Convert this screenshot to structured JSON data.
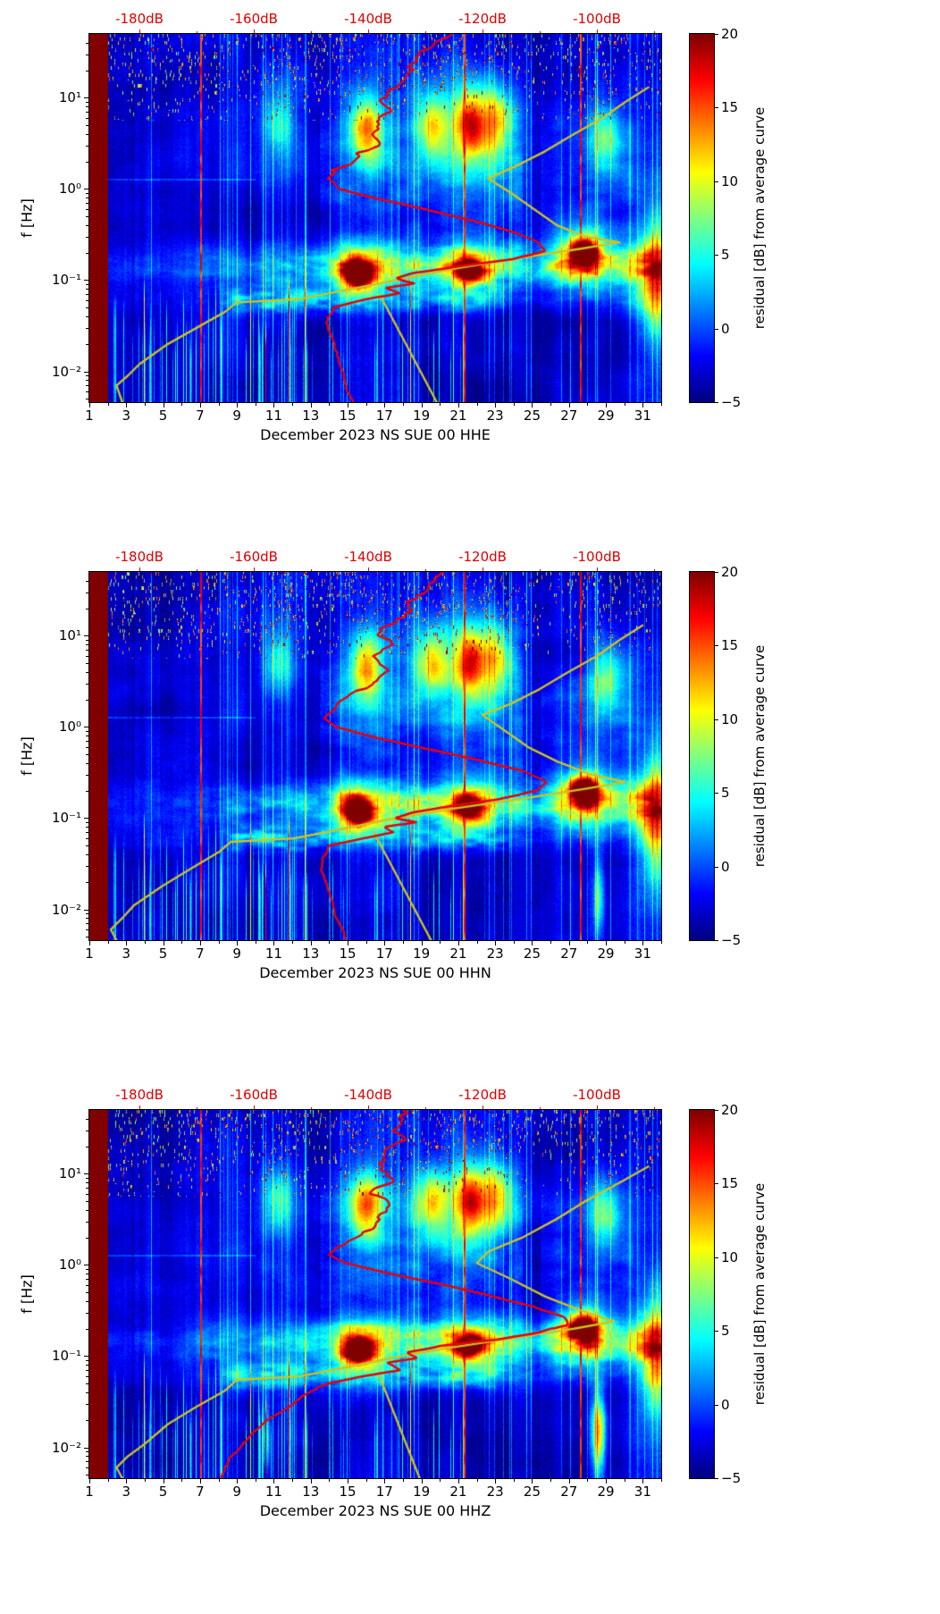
{
  "figure": {
    "background": "#ffffff",
    "colors": {
      "top_axis_text": "#dd0000",
      "red_curve": "#e8000b",
      "yellow_curve": "#cfc320",
      "axis_text": "#000000",
      "colormap_low": "#00007f",
      "colormap_high": "#800000"
    },
    "colorbar": {
      "label": "residual [dB] from average curve",
      "tick_labels": [
        "20",
        "15",
        "10",
        "5",
        "0",
        "−5"
      ],
      "tick_values": [
        20,
        15,
        10,
        5,
        0,
        -5
      ],
      "vmin": -5,
      "vmax": 20
    },
    "axes": {
      "ylabel": "f [Hz]",
      "f_range_hz": [
        0.0046,
        50
      ],
      "day_range": [
        1,
        32
      ],
      "db_range": [
        -188.75,
        -88.75
      ],
      "x_tick_labels": [
        "1",
        "3",
        "5",
        "7",
        "9",
        "11",
        "13",
        "15",
        "17",
        "19",
        "21",
        "23",
        "25",
        "27",
        "29",
        "31"
      ],
      "x_tick_values": [
        1,
        3,
        5,
        7,
        9,
        11,
        13,
        15,
        17,
        19,
        21,
        23,
        25,
        27,
        29,
        31
      ],
      "y_ticks": [
        {
          "f": 10,
          "label": "10¹"
        },
        {
          "f": 1,
          "label": "10⁰"
        },
        {
          "f": 0.1,
          "label": "10⁻¹"
        },
        {
          "f": 0.01,
          "label": "10⁻²"
        }
      ],
      "top_ticks": [
        {
          "db": -180,
          "label": "-180dB"
        },
        {
          "db": -160,
          "label": "-160dB"
        },
        {
          "db": -140,
          "label": "-140dB"
        },
        {
          "db": -120,
          "label": "-120dB"
        },
        {
          "db": -100,
          "label": "-100dB"
        }
      ]
    }
  },
  "chart_data": {
    "type": "heatmap",
    "panels": [
      {
        "xlabel": "December 2023 NS SUE 00 HHE",
        "red_curve": [
          [
            50,
            -127
          ],
          [
            35,
            -129
          ],
          [
            25,
            -131
          ],
          [
            18,
            -133
          ],
          [
            12,
            -136
          ],
          [
            9,
            -138
          ],
          [
            7,
            -137
          ],
          [
            5.5,
            -140
          ],
          [
            4.2,
            -138
          ],
          [
            3,
            -138
          ],
          [
            2.4,
            -141
          ],
          [
            1.8,
            -144
          ],
          [
            1.3,
            -147
          ],
          [
            1.0,
            -145
          ],
          [
            0.8,
            -139
          ],
          [
            0.6,
            -130
          ],
          [
            0.45,
            -122
          ],
          [
            0.33,
            -114
          ],
          [
            0.26,
            -110
          ],
          [
            0.21,
            -109
          ],
          [
            0.17,
            -114
          ],
          [
            0.14,
            -124
          ],
          [
            0.12,
            -132
          ],
          [
            0.105,
            -135
          ],
          [
            0.092,
            -132
          ],
          [
            0.082,
            -137
          ],
          [
            0.072,
            -134
          ],
          [
            0.062,
            -140
          ],
          [
            0.05,
            -146
          ],
          [
            0.038,
            -147
          ],
          [
            0.028,
            -147
          ],
          [
            0.02,
            -146
          ],
          [
            0.013,
            -145
          ],
          [
            0.008,
            -144
          ],
          [
            0.0046,
            -143
          ]
        ],
        "yellow_curve": [
          [
            13,
            -91
          ],
          [
            9,
            -95
          ],
          [
            6,
            -99
          ],
          [
            4,
            -104
          ],
          [
            2.6,
            -109
          ],
          [
            1.8,
            -114
          ],
          [
            1.3,
            -119
          ],
          [
            0.9,
            -115
          ],
          [
            0.6,
            -111
          ],
          [
            0.4,
            -107
          ],
          [
            0.3,
            -102
          ],
          [
            0.26,
            -96
          ],
          [
            0.22,
            -103
          ],
          [
            0.17,
            -115
          ],
          [
            0.13,
            -126
          ],
          [
            0.1,
            -135
          ],
          [
            0.08,
            -143
          ],
          [
            0.062,
            -152
          ],
          [
            0.057,
            -163
          ],
          [
            0.045,
            -165
          ],
          [
            0.03,
            -170
          ],
          [
            0.02,
            -175
          ],
          [
            0.012,
            -180
          ],
          [
            0.009,
            -182
          ],
          [
            0.007,
            -184
          ],
          [
            0.0046,
            -183
          ]
        ],
        "yellow_branch": [
          [
            0.07,
            -138
          ],
          [
            0.0046,
            -128
          ]
        ]
      },
      {
        "xlabel": "December 2023 NS SUE 00 HHN",
        "red_curve": [
          [
            50,
            -128
          ],
          [
            33,
            -130
          ],
          [
            22,
            -132
          ],
          [
            15,
            -135
          ],
          [
            10,
            -138
          ],
          [
            8,
            -136
          ],
          [
            6,
            -140
          ],
          [
            4.5,
            -138
          ],
          [
            3.2,
            -138
          ],
          [
            2.3,
            -142
          ],
          [
            1.7,
            -145
          ],
          [
            1.25,
            -148
          ],
          [
            1.0,
            -146
          ],
          [
            0.8,
            -140
          ],
          [
            0.6,
            -131
          ],
          [
            0.45,
            -122
          ],
          [
            0.33,
            -113
          ],
          [
            0.25,
            -109
          ],
          [
            0.2,
            -110
          ],
          [
            0.16,
            -117
          ],
          [
            0.135,
            -126
          ],
          [
            0.115,
            -133
          ],
          [
            0.1,
            -136
          ],
          [
            0.09,
            -132
          ],
          [
            0.08,
            -137
          ],
          [
            0.07,
            -135
          ],
          [
            0.06,
            -141
          ],
          [
            0.05,
            -147
          ],
          [
            0.037,
            -148
          ],
          [
            0.027,
            -148
          ],
          [
            0.018,
            -147
          ],
          [
            0.011,
            -146
          ],
          [
            0.007,
            -145
          ],
          [
            0.0046,
            -144
          ]
        ],
        "yellow_curve": [
          [
            13,
            -92
          ],
          [
            9,
            -96
          ],
          [
            6,
            -100
          ],
          [
            4,
            -105
          ],
          [
            2.6,
            -110
          ],
          [
            1.8,
            -115
          ],
          [
            1.35,
            -120
          ],
          [
            0.9,
            -116
          ],
          [
            0.6,
            -112
          ],
          [
            0.42,
            -107
          ],
          [
            0.3,
            -101
          ],
          [
            0.25,
            -95
          ],
          [
            0.21,
            -102
          ],
          [
            0.16,
            -114
          ],
          [
            0.125,
            -126
          ],
          [
            0.095,
            -137
          ],
          [
            0.075,
            -145
          ],
          [
            0.06,
            -153
          ],
          [
            0.055,
            -164
          ],
          [
            0.043,
            -166
          ],
          [
            0.028,
            -171
          ],
          [
            0.018,
            -176
          ],
          [
            0.011,
            -181
          ],
          [
            0.008,
            -183
          ],
          [
            0.006,
            -185
          ],
          [
            0.0046,
            -184
          ]
        ],
        "yellow_branch": [
          [
            0.07,
            -139
          ],
          [
            0.0046,
            -129
          ]
        ]
      },
      {
        "xlabel": "December 2023 NS SUE 00 HHZ",
        "red_curve": [
          [
            50,
            -134
          ],
          [
            35,
            -134
          ],
          [
            25,
            -135
          ],
          [
            17,
            -136
          ],
          [
            11,
            -137
          ],
          [
            8,
            -136
          ],
          [
            6,
            -139
          ],
          [
            4.5,
            -137
          ],
          [
            3.2,
            -137
          ],
          [
            2.3,
            -141
          ],
          [
            1.7,
            -145
          ],
          [
            1.3,
            -147
          ],
          [
            1.05,
            -144
          ],
          [
            0.85,
            -138
          ],
          [
            0.65,
            -129
          ],
          [
            0.48,
            -120
          ],
          [
            0.35,
            -111
          ],
          [
            0.27,
            -106
          ],
          [
            0.22,
            -105
          ],
          [
            0.18,
            -110
          ],
          [
            0.15,
            -119
          ],
          [
            0.13,
            -127
          ],
          [
            0.11,
            -133
          ],
          [
            0.095,
            -131
          ],
          [
            0.085,
            -136
          ],
          [
            0.07,
            -134
          ],
          [
            0.06,
            -141
          ],
          [
            0.05,
            -147
          ],
          [
            0.038,
            -151
          ],
          [
            0.028,
            -154
          ],
          [
            0.02,
            -158
          ],
          [
            0.013,
            -161
          ],
          [
            0.008,
            -164
          ],
          [
            0.0046,
            -166
          ]
        ],
        "yellow_curve": [
          [
            12,
            -91
          ],
          [
            8,
            -96
          ],
          [
            5,
            -102
          ],
          [
            3.2,
            -107
          ],
          [
            2.0,
            -113
          ],
          [
            1.4,
            -119
          ],
          [
            1.05,
            -121
          ],
          [
            0.7,
            -115
          ],
          [
            0.45,
            -109
          ],
          [
            0.32,
            -103
          ],
          [
            0.24,
            -97
          ],
          [
            0.2,
            -104
          ],
          [
            0.16,
            -114
          ],
          [
            0.12,
            -127
          ],
          [
            0.095,
            -136
          ],
          [
            0.075,
            -144
          ],
          [
            0.06,
            -152
          ],
          [
            0.055,
            -163
          ],
          [
            0.042,
            -165
          ],
          [
            0.028,
            -170
          ],
          [
            0.018,
            -175
          ],
          [
            0.011,
            -179
          ],
          [
            0.008,
            -182
          ],
          [
            0.006,
            -184
          ],
          [
            0.0046,
            -183
          ]
        ],
        "yellow_branch": [
          [
            0.06,
            -138
          ],
          [
            0.0046,
            -131
          ]
        ]
      }
    ],
    "features": {
      "left_saturated_band_days": [
        1,
        2.03
      ],
      "event_lines_day": [
        7.05,
        21.35,
        27.65
      ],
      "microseism_band_hz": [
        0.07,
        0.3
      ],
      "microseism_amp": {
        "days": [
          1,
          3,
          6,
          9,
          12,
          14,
          15,
          16,
          18,
          20,
          22,
          24,
          25,
          26,
          27,
          28,
          29,
          30,
          31,
          32
        ],
        "amp_db": [
          2,
          2.5,
          3,
          4.5,
          6,
          7,
          11,
          10,
          9,
          11,
          12,
          8,
          6,
          9,
          12,
          14,
          10,
          9,
          11,
          8
        ]
      },
      "low_band_amp": {
        "days": [
          1,
          8,
          9,
          12,
          14,
          15,
          18,
          19,
          23,
          24,
          32
        ],
        "amp_db": [
          1,
          1,
          6,
          7,
          5,
          4,
          4,
          6,
          5,
          2,
          2
        ]
      },
      "hotspots": [
        {
          "day": 15.6,
          "f_hz": 0.115,
          "amp_db": 20
        },
        {
          "day": 21.6,
          "f_hz": 0.13,
          "amp_db": 15
        },
        {
          "day": 27.8,
          "f_hz": 0.21,
          "amp_db": 20
        },
        {
          "day": 31.7,
          "f_hz": 0.1,
          "amp_db": 11
        },
        {
          "day": 16.0,
          "f_hz": 4.5,
          "amp_db": 12
        },
        {
          "day": 19.6,
          "f_hz": 5.0,
          "amp_db": 10
        },
        {
          "day": 21.7,
          "f_hz": 5.0,
          "amp_db": 14
        },
        {
          "day": 23.1,
          "f_hz": 5.5,
          "amp_db": 9
        },
        {
          "day": 29.0,
          "f_hz": 3.5,
          "amp_db": 7
        },
        {
          "day": 11.3,
          "f_hz": 5.0,
          "amp_db": 6
        }
      ]
    }
  }
}
